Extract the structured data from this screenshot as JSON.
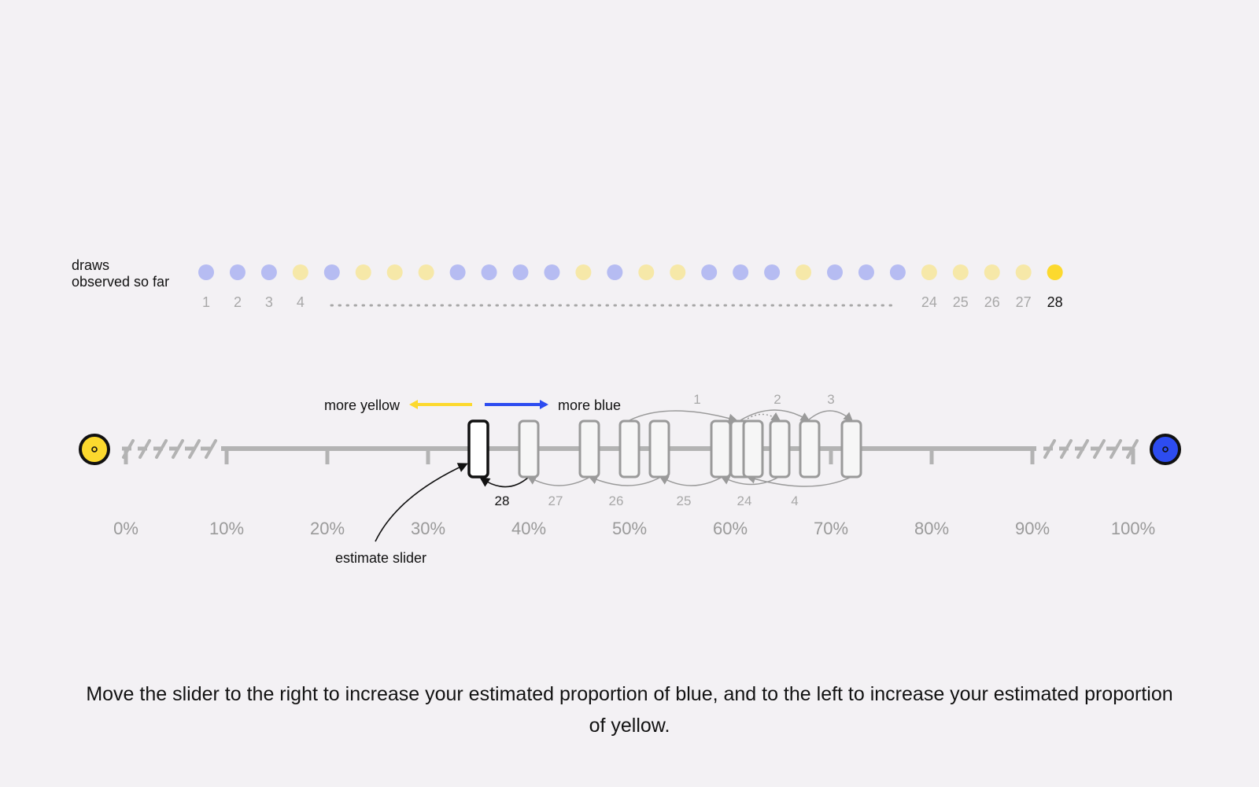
{
  "draws": {
    "label_line1": "draws",
    "label_line2": "observed so far",
    "sequence": [
      "blue",
      "blue",
      "blue",
      "yellow",
      "blue",
      "yellow",
      "yellow",
      "yellow",
      "blue",
      "blue",
      "blue",
      "blue",
      "yellow",
      "blue",
      "yellow",
      "yellow",
      "blue",
      "blue",
      "blue",
      "yellow",
      "blue",
      "blue",
      "blue",
      "yellow",
      "yellow",
      "yellow",
      "yellow",
      "yellow"
    ],
    "visible_numbers": [
      "1",
      "2",
      "3",
      "4",
      "24",
      "25",
      "26",
      "27",
      "28"
    ],
    "current": "28"
  },
  "colors": {
    "yellow": "#fcd92e",
    "blue": "#2d4cf0",
    "yellow_faded": "#f6e8a8",
    "blue_faded": "#b6bcf2",
    "track": "#b3b3b3",
    "muted_text": "#a8a8a8"
  },
  "direction": {
    "left_label": "more yellow",
    "right_label": "more blue"
  },
  "scale": {
    "tick_labels": [
      "0%",
      "10%",
      "20%",
      "30%",
      "40%",
      "50%",
      "60%",
      "70%",
      "80%",
      "90%",
      "100%"
    ],
    "left_endpoint_icon": "yellow-target-icon",
    "right_endpoint_icon": "blue-target-icon"
  },
  "slider": {
    "label": "estimate slider",
    "current_estimate_percent": 35,
    "current_label": "28"
  },
  "history": {
    "lower_labels": [
      "27",
      "26",
      "25",
      "24",
      "4"
    ],
    "upper_labels": [
      "1",
      "2",
      "3"
    ]
  },
  "instructions": "Move the slider to the right to increase your estimated proportion of blue, and to the left to increase your estimated proportion of yellow."
}
